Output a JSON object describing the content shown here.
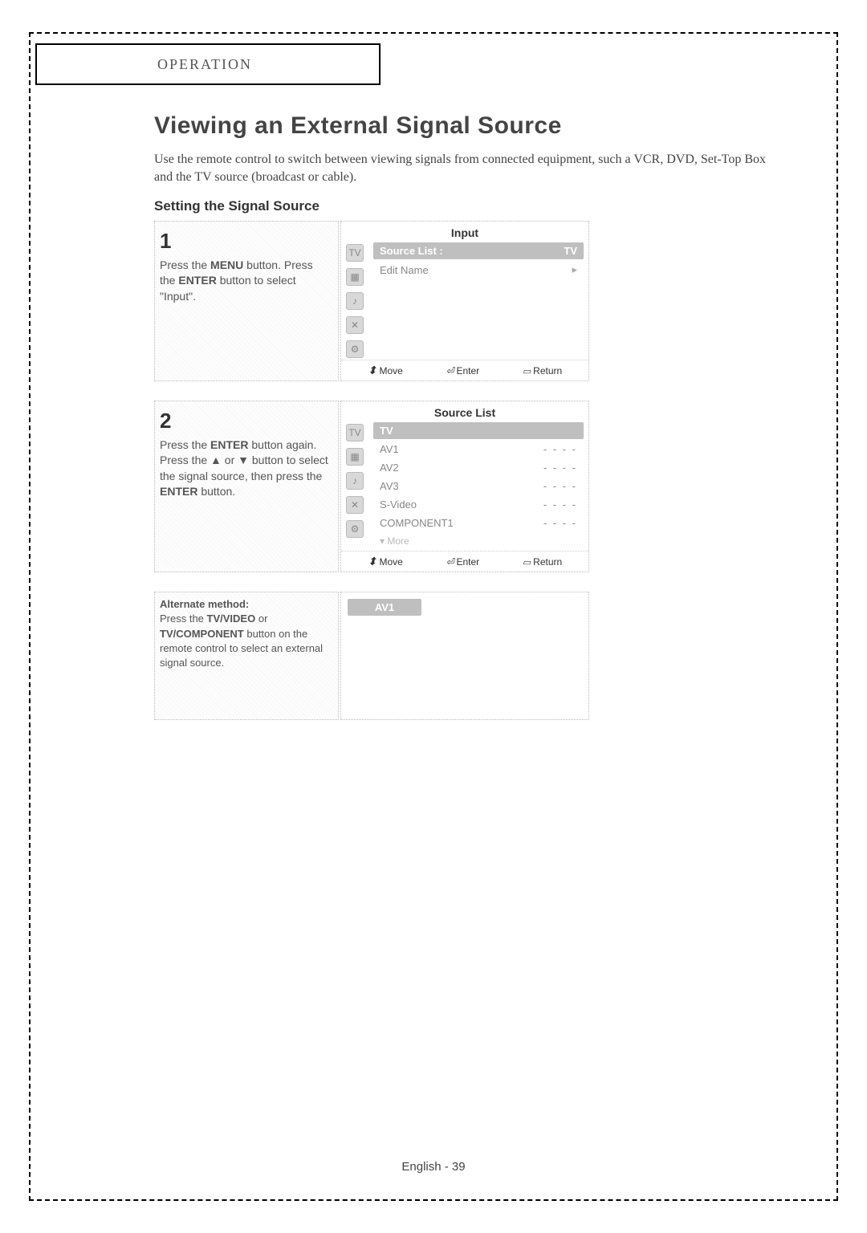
{
  "header": {
    "label": "OPERATION"
  },
  "title": "Viewing an External Signal Source",
  "intro": "Use the remote control to switch between viewing signals from connected equipment, such a VCR, DVD, Set-Top Box and the TV source (broadcast or cable).",
  "subtitle": "Setting the Signal Source",
  "step1": {
    "num": "1",
    "text_before_menu": "Press the ",
    "menu": "MENU",
    "text_mid1": " button. Press the ",
    "enter": "ENTER",
    "text_after": " button to select \"Input\"."
  },
  "osd1": {
    "title": "Input",
    "rows": [
      {
        "label": "Source List :",
        "value": "TV",
        "hl": true
      },
      {
        "label": "Edit Name",
        "value": "",
        "caret": true
      }
    ],
    "footer": {
      "move": "Move",
      "enter": "Enter",
      "return": "Return"
    }
  },
  "step2": {
    "num": "2",
    "t1": "Press the ",
    "enter1": "ENTER",
    "t2": " button again. Press the ",
    "up": "▲",
    "t3": " or ",
    "down": "▼",
    "t4": " button to select the signal source, then press the ",
    "enter2": "ENTER",
    "t5": " button."
  },
  "osd2": {
    "title": "Source List",
    "rows": [
      {
        "label": "TV",
        "dots": "",
        "hl": true
      },
      {
        "label": "AV1",
        "dots": "- - - -"
      },
      {
        "label": "AV2",
        "dots": "- - - -"
      },
      {
        "label": "AV3",
        "dots": "- - - -"
      },
      {
        "label": "S-Video",
        "dots": "- - - -"
      },
      {
        "label": "COMPONENT1",
        "dots": "- - - -"
      }
    ],
    "more": "▾ More",
    "footer": {
      "move": "Move",
      "enter": "Enter",
      "return": "Return"
    }
  },
  "alt": {
    "heading": "Alternate method:",
    "t1": "Press the ",
    "b1": "TV/VIDEO",
    "t2": " or ",
    "b2": "TV/COMPONENT",
    "t3": " button on the remote control to select an external signal source."
  },
  "av_banner": "AV1",
  "footer": "English - 39"
}
